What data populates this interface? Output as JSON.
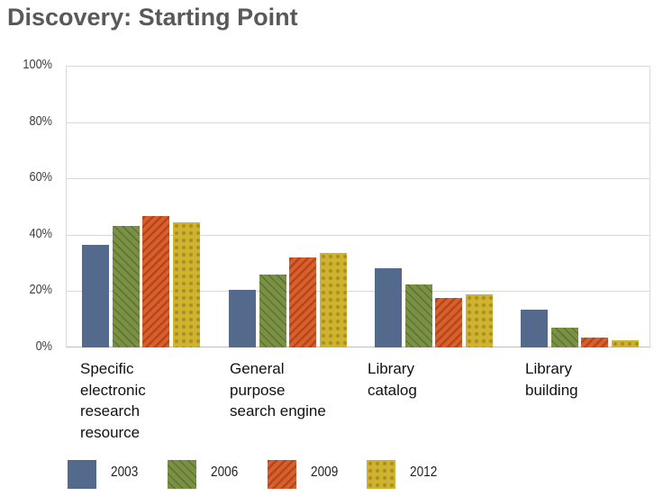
{
  "title": "Discovery: Starting Point",
  "chart_data": {
    "type": "bar",
    "title": "Discovery: Starting Point",
    "xlabel": "",
    "ylabel": "",
    "ylim": [
      0,
      100
    ],
    "yticks": [
      "0%",
      "20%",
      "40%",
      "60%",
      "80%",
      "100%"
    ],
    "grid": true,
    "legend_position": "bottom",
    "categories": [
      "Specific electronic research resource",
      "General purpose search engine",
      "Library catalog",
      "Library building"
    ],
    "category_lines": [
      [
        "Specific",
        "electronic",
        "research",
        "resource"
      ],
      [
        "General",
        "purpose",
        "search engine"
      ],
      [
        "Library",
        "catalog"
      ],
      [
        "Library",
        "building"
      ]
    ],
    "series": [
      {
        "name": "2003",
        "color": "#536a8c",
        "pattern": "solid",
        "values": [
          36.5,
          20.5,
          28,
          13.5
        ]
      },
      {
        "name": "2006",
        "color": "#7a9044",
        "pattern": "diagonal-hatch",
        "values": [
          43,
          26,
          22.5,
          7
        ]
      },
      {
        "name": "2009",
        "color": "#d95f2b",
        "pattern": "diagonal-stripe",
        "values": [
          46.5,
          32,
          17.5,
          3.5
        ]
      },
      {
        "name": "2012",
        "color": "#cfb22e",
        "pattern": "dots",
        "values": [
          44.5,
          33.5,
          19,
          2.5
        ]
      }
    ]
  }
}
